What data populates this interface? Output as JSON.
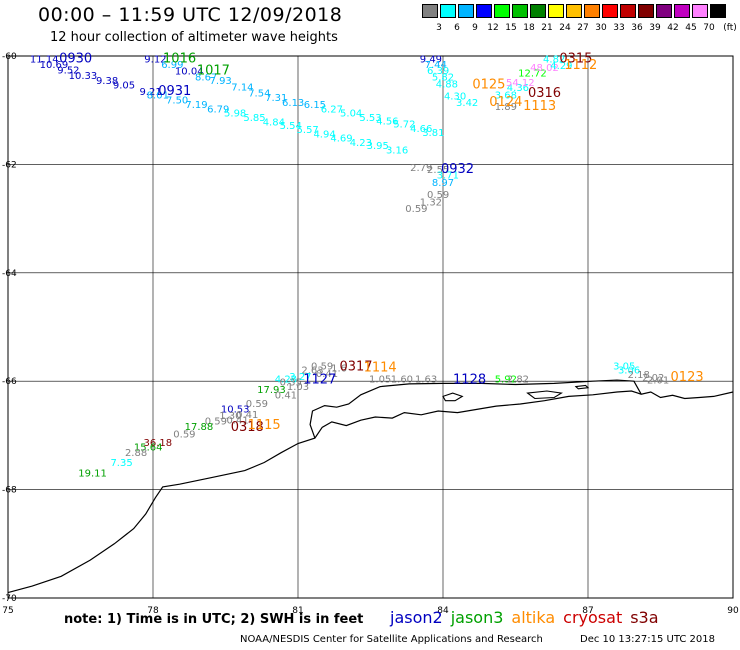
{
  "header": {
    "title": "00:00 – 11:59 UTC 12/09/2018",
    "subtitle": "12 hour collection of altimeter wave heights"
  },
  "colorscale": {
    "unit": "(ft)",
    "items": [
      {
        "label": "3",
        "color": "#808080"
      },
      {
        "label": "6",
        "color": "#00ffff"
      },
      {
        "label": "9",
        "color": "#00b4ff"
      },
      {
        "label": "12",
        "color": "#0000ff"
      },
      {
        "label": "15",
        "color": "#00ff00"
      },
      {
        "label": "18",
        "color": "#00c000"
      },
      {
        "label": "21",
        "color": "#008000"
      },
      {
        "label": "24",
        "color": "#ffff00"
      },
      {
        "label": "27",
        "color": "#ffc000"
      },
      {
        "label": "30",
        "color": "#ff8000"
      },
      {
        "label": "33",
        "color": "#ff0000"
      },
      {
        "label": "36",
        "color": "#c00000"
      },
      {
        "label": "39",
        "color": "#800000"
      },
      {
        "label": "42",
        "color": "#800080"
      },
      {
        "label": "45",
        "color": "#c000c0"
      },
      {
        "label": "70",
        "color": "#ff80ff"
      },
      {
        "label": "",
        "color": "#000000"
      }
    ]
  },
  "axes": {
    "x_ticks": [
      "75",
      "78",
      "81",
      "84",
      "87",
      "90"
    ],
    "y_ticks": [
      "-60",
      "-62",
      "-64",
      "-66",
      "-68",
      "-70"
    ],
    "xlim": [
      75,
      90
    ],
    "ylim": [
      -70,
      -60
    ],
    "grid": true
  },
  "note": "note: 1) Time is in UTC; 2) SWH is in feet",
  "satellites": [
    {
      "name": "jason2",
      "color": "#0000c0"
    },
    {
      "name": "jason3",
      "color": "#00a000"
    },
    {
      "name": "altika",
      "color": "#ff8c00"
    },
    {
      "name": "cryosat",
      "color": "#cc0000"
    },
    {
      "name": "s3a",
      "color": "#800000"
    }
  ],
  "credit": "NOAA/NESDIS Center for Satellite Applications and Research",
  "timestamp": "Dec 10 13:27:15 UTC 2018",
  "wave_labels": [
    {
      "t": "11.14",
      "lon": 75.75,
      "lat": -60.12,
      "c": "#0000c0"
    },
    {
      "t": "10.69",
      "lon": 75.95,
      "lat": -60.22,
      "c": "#0000c0"
    },
    {
      "t": "9.52",
      "lon": 76.25,
      "lat": -60.32,
      "c": "#0000c0"
    },
    {
      "t": "10.33",
      "lon": 76.55,
      "lat": -60.42,
      "c": "#0000c0"
    },
    {
      "t": "9.38",
      "lon": 77.05,
      "lat": -60.52,
      "c": "#0000c0"
    },
    {
      "t": "9.05",
      "lon": 77.4,
      "lat": -60.6,
      "c": "#0000c0"
    },
    {
      "t": "9.21",
      "lon": 77.95,
      "lat": -60.72,
      "c": "#0000c0"
    },
    {
      "t": "9.12",
      "lon": 78.05,
      "lat": -60.12,
      "c": "#0000c0"
    },
    {
      "t": "6.99",
      "lon": 78.4,
      "lat": -60.22,
      "c": "#00b4ff"
    },
    {
      "t": "10.04",
      "lon": 78.75,
      "lat": -60.34,
      "c": "#0000c0"
    },
    {
      "t": "8.67",
      "lon": 79.1,
      "lat": -60.45,
      "c": "#00b4ff"
    },
    {
      "t": "7.93",
      "lon": 79.4,
      "lat": -60.52,
      "c": "#00b4ff"
    },
    {
      "t": "8.01",
      "lon": 78.1,
      "lat": -60.78,
      "c": "#00b4ff"
    },
    {
      "t": "7.50",
      "lon": 78.5,
      "lat": -60.88,
      "c": "#00b4ff"
    },
    {
      "t": "7.19",
      "lon": 78.9,
      "lat": -60.96,
      "c": "#00b4ff"
    },
    {
      "t": "6.79",
      "lon": 79.35,
      "lat": -61.04,
      "c": "#00b4ff"
    },
    {
      "t": "7.14",
      "lon": 79.85,
      "lat": -60.64,
      "c": "#00b4ff"
    },
    {
      "t": "7.54",
      "lon": 80.2,
      "lat": -60.75,
      "c": "#00b4ff"
    },
    {
      "t": "7.31",
      "lon": 80.55,
      "lat": -60.83,
      "c": "#00b4ff"
    },
    {
      "t": "6.13",
      "lon": 80.9,
      "lat": -60.92,
      "c": "#00b4ff"
    },
    {
      "t": "6.15",
      "lon": 81.35,
      "lat": -60.96,
      "c": "#00b4ff"
    },
    {
      "t": "5.98",
      "lon": 79.7,
      "lat": -61.12,
      "c": "#00ffff"
    },
    {
      "t": "5.85",
      "lon": 80.1,
      "lat": -61.2,
      "c": "#00ffff"
    },
    {
      "t": "4.84",
      "lon": 80.5,
      "lat": -61.28,
      "c": "#00ffff"
    },
    {
      "t": "5.54",
      "lon": 80.85,
      "lat": -61.35,
      "c": "#00ffff"
    },
    {
      "t": "5.57",
      "lon": 81.2,
      "lat": -61.42,
      "c": "#00ffff"
    },
    {
      "t": "4.94",
      "lon": 81.55,
      "lat": -61.5,
      "c": "#00ffff"
    },
    {
      "t": "4.69",
      "lon": 81.9,
      "lat": -61.58,
      "c": "#00ffff"
    },
    {
      "t": "4.23",
      "lon": 82.3,
      "lat": -61.66,
      "c": "#00ffff"
    },
    {
      "t": "3.95",
      "lon": 82.65,
      "lat": -61.72,
      "c": "#00ffff"
    },
    {
      "t": "3.16",
      "lon": 83.05,
      "lat": -61.8,
      "c": "#00ffff"
    },
    {
      "t": "6.27",
      "lon": 81.7,
      "lat": -61.04,
      "c": "#00ffff"
    },
    {
      "t": "5.04",
      "lon": 82.1,
      "lat": -61.12,
      "c": "#00ffff"
    },
    {
      "t": "5.53",
      "lon": 82.5,
      "lat": -61.2,
      "c": "#00ffff"
    },
    {
      "t": "4.56",
      "lon": 82.85,
      "lat": -61.26,
      "c": "#00ffff"
    },
    {
      "t": "5.72",
      "lon": 83.2,
      "lat": -61.32,
      "c": "#00ffff"
    },
    {
      "t": "4.66",
      "lon": 83.55,
      "lat": -61.4,
      "c": "#00ffff"
    },
    {
      "t": "3.81",
      "lon": 83.8,
      "lat": -61.48,
      "c": "#00ffff"
    },
    {
      "t": "9.49",
      "lon": 83.75,
      "lat": -60.12,
      "c": "#0000c0"
    },
    {
      "t": "7.44",
      "lon": 83.85,
      "lat": -60.22,
      "c": "#00b4ff"
    },
    {
      "t": "6.39",
      "lon": 83.9,
      "lat": -60.33,
      "c": "#00ffff"
    },
    {
      "t": "5.82",
      "lon": 84.0,
      "lat": -60.45,
      "c": "#00ffff"
    },
    {
      "t": "4.88",
      "lon": 84.08,
      "lat": -60.58,
      "c": "#00ffff"
    },
    {
      "t": "4.30",
      "lon": 84.25,
      "lat": -60.8,
      "c": "#00ffff"
    },
    {
      "t": "3.42",
      "lon": 84.5,
      "lat": -60.92,
      "c": "#00ffff"
    },
    {
      "t": "1.89",
      "lon": 85.3,
      "lat": -61.0,
      "c": "#808080"
    },
    {
      "t": "3.68",
      "lon": 85.3,
      "lat": -60.78,
      "c": "#00ffff"
    },
    {
      "t": "4.36",
      "lon": 85.55,
      "lat": -60.65,
      "c": "#00ffff"
    },
    {
      "t": "54.12",
      "lon": 85.6,
      "lat": -60.55,
      "c": "#ff80ff"
    },
    {
      "t": "12.72",
      "lon": 85.85,
      "lat": -60.38,
      "c": "#00ff00"
    },
    {
      "t": "48.02",
      "lon": 86.1,
      "lat": -60.28,
      "c": "#ff80ff"
    },
    {
      "t": "4.29",
      "lon": 86.45,
      "lat": -60.24,
      "c": "#00ffff"
    },
    {
      "t": "4.82",
      "lon": 86.3,
      "lat": -60.12,
      "c": "#00ffff"
    },
    {
      "t": "2.79",
      "lon": 83.55,
      "lat": -62.12,
      "c": "#808080"
    },
    {
      "t": "2.55",
      "lon": 83.9,
      "lat": -62.16,
      "c": "#808080"
    },
    {
      "t": "3.71",
      "lon": 84.1,
      "lat": -62.26,
      "c": "#00ffff"
    },
    {
      "t": "8.97",
      "lon": 84.0,
      "lat": -62.4,
      "c": "#00b4ff"
    },
    {
      "t": "0.59",
      "lon": 83.9,
      "lat": -62.62,
      "c": "#808080"
    },
    {
      "t": "1.32",
      "lon": 83.75,
      "lat": -62.76,
      "c": "#808080"
    },
    {
      "t": "0.59",
      "lon": 83.45,
      "lat": -62.88,
      "c": "#808080"
    },
    {
      "t": "0.59",
      "lon": 81.5,
      "lat": -65.78,
      "c": "#808080"
    },
    {
      "t": "1.6",
      "lon": 81.85,
      "lat": -65.82,
      "c": "#808080"
    },
    {
      "t": "2.63",
      "lon": 81.3,
      "lat": -65.86,
      "c": "#808080"
    },
    {
      "t": "0.41",
      "lon": 81.6,
      "lat": -65.92,
      "c": "#808080"
    },
    {
      "t": "4.28",
      "lon": 80.75,
      "lat": -66.02,
      "c": "#00ffff"
    },
    {
      "t": "3.27",
      "lon": 81.05,
      "lat": -65.98,
      "c": "#00ffff"
    },
    {
      "t": "0.35",
      "lon": 80.85,
      "lat": -66.08,
      "c": "#808080"
    },
    {
      "t": "1.03",
      "lon": 81.0,
      "lat": -66.16,
      "c": "#808080"
    },
    {
      "t": "17.93",
      "lon": 80.45,
      "lat": -66.22,
      "c": "#00a000"
    },
    {
      "t": "0.41",
      "lon": 80.75,
      "lat": -66.32,
      "c": "#808080"
    },
    {
      "t": "0.59",
      "lon": 80.15,
      "lat": -66.48,
      "c": "#808080"
    },
    {
      "t": "10.53",
      "lon": 79.7,
      "lat": -66.58,
      "c": "#0000c0"
    },
    {
      "t": "1.30",
      "lon": 79.6,
      "lat": -66.7,
      "c": "#808080"
    },
    {
      "t": "0.41",
      "lon": 79.95,
      "lat": -66.68,
      "c": "#808080"
    },
    {
      "t": "0.59",
      "lon": 79.3,
      "lat": -66.8,
      "c": "#808080"
    },
    {
      "t": "0.41",
      "lon": 79.75,
      "lat": -66.78,
      "c": "#808080"
    },
    {
      "t": "17.88",
      "lon": 78.95,
      "lat": -66.9,
      "c": "#00a000"
    },
    {
      "t": "0.59",
      "lon": 78.65,
      "lat": -67.04,
      "c": "#808080"
    },
    {
      "t": "36.18",
      "lon": 78.1,
      "lat": -67.2,
      "c": "#800000"
    },
    {
      "t": "15.64",
      "lon": 77.9,
      "lat": -67.28,
      "c": "#00a000"
    },
    {
      "t": "2.88",
      "lon": 77.65,
      "lat": -67.38,
      "c": "#808080"
    },
    {
      "t": "7.35",
      "lon": 77.35,
      "lat": -67.56,
      "c": "#00ffff"
    },
    {
      "t": "19.11",
      "lon": 76.75,
      "lat": -67.76,
      "c": "#00a000"
    },
    {
      "t": "1.05",
      "lon": 82.7,
      "lat": -66.02,
      "c": "#808080"
    },
    {
      "t": "1.60",
      "lon": 83.15,
      "lat": -66.02,
      "c": "#808080"
    },
    {
      "t": "1.63",
      "lon": 83.65,
      "lat": -66.02,
      "c": "#808080"
    },
    {
      "t": "5.92",
      "lon": 85.3,
      "lat": -66.02,
      "c": "#00ff00"
    },
    {
      "t": "2.82",
      "lon": 85.55,
      "lat": -66.02,
      "c": "#808080"
    },
    {
      "t": "3.05",
      "lon": 87.75,
      "lat": -65.78,
      "c": "#00ffff"
    },
    {
      "t": "3.06",
      "lon": 87.85,
      "lat": -65.86,
      "c": "#00ffff"
    },
    {
      "t": "2.18",
      "lon": 88.05,
      "lat": -65.94,
      "c": "#808080"
    },
    {
      "t": "2.02",
      "lon": 88.35,
      "lat": -66.0,
      "c": "#808080"
    },
    {
      "t": "2.01",
      "lon": 88.45,
      "lat": -66.04,
      "c": "#808080"
    }
  ],
  "time_labels": [
    {
      "t": "0930",
      "lon": 76.4,
      "lat": -60.12,
      "c": "#0000c0"
    },
    {
      "t": "1016",
      "lon": 78.55,
      "lat": -60.12,
      "c": "#00a000"
    },
    {
      "t": "1017",
      "lon": 79.25,
      "lat": -60.34,
      "c": "#00a000"
    },
    {
      "t": "0931",
      "lon": 78.45,
      "lat": -60.72,
      "c": "#0000c0"
    },
    {
      "t": "0315",
      "lon": 86.75,
      "lat": -60.12,
      "c": "#800000"
    },
    {
      "t": "1112",
      "lon": 86.85,
      "lat": -60.24,
      "c": "#ff8c00"
    },
    {
      "t": "0125",
      "lon": 84.95,
      "lat": -60.6,
      "c": "#ff8c00"
    },
    {
      "t": "0316",
      "lon": 86.1,
      "lat": -60.76,
      "c": "#800000"
    },
    {
      "t": "0124",
      "lon": 85.3,
      "lat": -60.92,
      "c": "#ff8c00"
    },
    {
      "t": "1113",
      "lon": 86.0,
      "lat": -61.0,
      "c": "#ff8c00"
    },
    {
      "t": "0932",
      "lon": 84.3,
      "lat": -62.16,
      "c": "#0000c0"
    },
    {
      "t": "0317",
      "lon": 82.2,
      "lat": -65.8,
      "c": "#800000"
    },
    {
      "t": "1114",
      "lon": 82.7,
      "lat": -65.82,
      "c": "#ff8c00"
    },
    {
      "t": "1127",
      "lon": 81.45,
      "lat": -66.04,
      "c": "#0000c0"
    },
    {
      "t": "1128",
      "lon": 84.55,
      "lat": -66.04,
      "c": "#0000c0"
    },
    {
      "t": "0318",
      "lon": 79.95,
      "lat": -66.92,
      "c": "#800000"
    },
    {
      "t": "1115",
      "lon": 80.3,
      "lat": -66.88,
      "c": "#ff8c00"
    },
    {
      "t": "0123",
      "lon": 89.05,
      "lat": -66.0,
      "c": "#ff8c00"
    }
  ],
  "coastline": [
    [
      75.0,
      -69.9
    ],
    [
      75.5,
      -69.78
    ],
    [
      76.1,
      -69.6
    ],
    [
      76.7,
      -69.3
    ],
    [
      77.2,
      -69.0
    ],
    [
      77.6,
      -68.72
    ],
    [
      77.85,
      -68.45
    ],
    [
      78.05,
      -68.15
    ],
    [
      78.2,
      -67.95
    ],
    [
      78.55,
      -67.9
    ],
    [
      79.2,
      -67.78
    ],
    [
      79.9,
      -67.65
    ],
    [
      80.3,
      -67.5
    ],
    [
      80.65,
      -67.32
    ],
    [
      81.0,
      -67.15
    ],
    [
      81.35,
      -67.05
    ],
    [
      81.5,
      -66.85
    ],
    [
      81.7,
      -66.75
    ],
    [
      82.0,
      -66.82
    ],
    [
      82.3,
      -66.72
    ],
    [
      82.6,
      -66.66
    ],
    [
      82.95,
      -66.68
    ],
    [
      83.2,
      -66.58
    ],
    [
      83.55,
      -66.62
    ],
    [
      83.9,
      -66.55
    ],
    [
      84.3,
      -66.58
    ],
    [
      84.7,
      -66.52
    ],
    [
      85.1,
      -66.46
    ],
    [
      85.6,
      -66.42
    ],
    [
      86.1,
      -66.36
    ],
    [
      86.6,
      -66.28
    ],
    [
      87.1,
      -66.25
    ],
    [
      87.6,
      -66.2
    ],
    [
      87.9,
      -66.18
    ],
    [
      88.1,
      -66.24
    ],
    [
      88.3,
      -66.2
    ],
    [
      88.5,
      -66.3
    ],
    [
      88.75,
      -66.26
    ],
    [
      89.0,
      -66.32
    ],
    [
      89.3,
      -66.3
    ],
    [
      89.6,
      -66.28
    ],
    [
      90.0,
      -66.2
    ]
  ],
  "coastline_upper": [
    [
      81.35,
      -67.05
    ],
    [
      81.25,
      -66.8
    ],
    [
      81.3,
      -66.55
    ],
    [
      81.55,
      -66.45
    ],
    [
      81.8,
      -66.48
    ],
    [
      82.05,
      -66.42
    ],
    [
      82.3,
      -66.25
    ],
    [
      82.7,
      -66.1
    ],
    [
      83.3,
      -66.05
    ],
    [
      84.0,
      -66.04
    ],
    [
      84.8,
      -66.04
    ],
    [
      85.5,
      -66.06
    ],
    [
      86.3,
      -66.04
    ],
    [
      87.1,
      -66.0
    ],
    [
      87.6,
      -65.98
    ],
    [
      87.95,
      -66.0
    ],
    [
      88.1,
      -66.24
    ]
  ],
  "islands": [
    [
      [
        84.0,
        -66.28
      ],
      [
        84.2,
        -66.22
      ],
      [
        84.4,
        -66.28
      ],
      [
        84.25,
        -66.36
      ],
      [
        84.05,
        -66.36
      ],
      [
        84.0,
        -66.28
      ]
    ],
    [
      [
        85.75,
        -66.22
      ],
      [
        86.15,
        -66.18
      ],
      [
        86.45,
        -66.22
      ],
      [
        86.3,
        -66.3
      ],
      [
        85.9,
        -66.32
      ],
      [
        85.75,
        -66.22
      ]
    ],
    [
      [
        86.75,
        -66.1
      ],
      [
        86.95,
        -66.08
      ],
      [
        87.0,
        -66.12
      ],
      [
        86.8,
        -66.14
      ],
      [
        86.75,
        -66.1
      ]
    ]
  ]
}
